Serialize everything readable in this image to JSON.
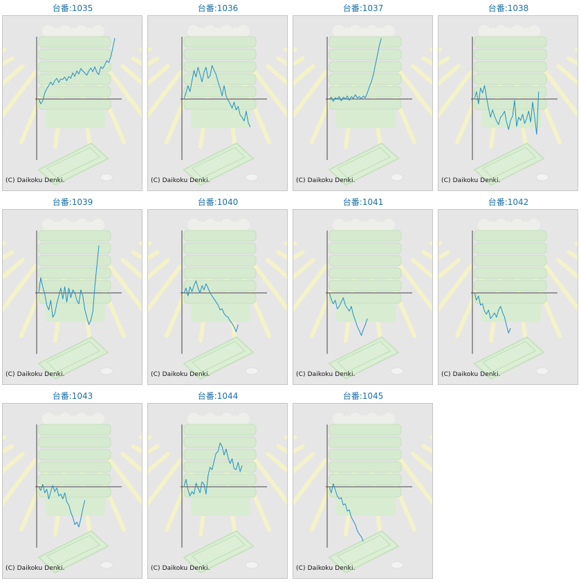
{
  "copyright": "(C) Daikoku Denki.",
  "colors": {
    "line": "#1e8fc4",
    "title": "#1a6fa8",
    "axis": "#444444",
    "panel": "#e6e6e6"
  },
  "chart_data": [
    {
      "type": "line",
      "title": "台番:1035",
      "y": [
        0.0,
        -0.08,
        -0.03,
        0.1,
        0.17,
        0.22,
        0.28,
        0.23,
        0.3,
        0.34,
        0.27,
        0.33,
        0.32,
        0.36,
        0.3,
        0.37,
        0.34,
        0.43,
        0.37,
        0.46,
        0.41,
        0.5,
        0.46,
        0.43,
        0.39,
        0.46,
        0.51,
        0.45,
        0.53,
        0.44,
        0.4,
        0.53,
        0.5,
        0.56,
        0.63,
        0.6,
        0.69,
        0.84,
        1.0
      ]
    },
    {
      "type": "line",
      "title": "台番:1036",
      "y": [
        0.0,
        0.1,
        0.22,
        0.12,
        0.3,
        0.47,
        0.36,
        0.52,
        0.4,
        0.28,
        0.44,
        0.52,
        0.34,
        0.38,
        0.55,
        0.47,
        0.4,
        0.28,
        0.18,
        0.05,
        0.22,
        0.05,
        -0.02,
        -0.08,
        -0.15,
        -0.05,
        -0.18,
        -0.12,
        -0.26,
        -0.3,
        -0.36,
        -0.2,
        -0.38,
        -0.46
      ]
    },
    {
      "type": "line",
      "title": "台番:1037",
      "y": [
        0.0,
        0.03,
        -0.04,
        0.02,
        0.0,
        0.04,
        -0.03,
        0.03,
        0.0,
        0.05,
        -0.02,
        0.04,
        0.01,
        0.07,
        0.02,
        0.04,
        0.0,
        0.05,
        0.02,
        0.1,
        0.2,
        0.28,
        0.4,
        0.56,
        0.72,
        0.88,
        1.0
      ]
    },
    {
      "type": "line",
      "title": "台番:1038",
      "y": [
        0.0,
        0.12,
        -0.08,
        0.18,
        0.1,
        0.22,
        0.03,
        -0.15,
        -0.3,
        -0.18,
        -0.28,
        -0.36,
        -0.42,
        -0.3,
        -0.26,
        -0.2,
        -0.38,
        -0.5,
        -0.35,
        -0.28,
        -0.02,
        -0.45,
        -0.3,
        -0.35,
        -0.25,
        -0.4,
        -0.32,
        -0.2,
        -0.38,
        -0.05,
        -0.3,
        -0.58,
        0.12
      ]
    },
    {
      "type": "line",
      "title": "台番:1039",
      "y": [
        0.0,
        0.25,
        0.1,
        -0.02,
        -0.2,
        -0.28,
        -0.12,
        -0.4,
        -0.34,
        -0.18,
        -0.05,
        0.08,
        -0.1,
        0.1,
        -0.15,
        0.08,
        -0.08,
        0.05,
        0.0,
        -0.12,
        -0.18,
        0.05,
        -0.05,
        -0.28,
        -0.4,
        -0.52,
        -0.45,
        -0.3,
        0.12,
        0.45,
        0.78
      ]
    },
    {
      "type": "line",
      "title": "台番:1040",
      "y": [
        0.0,
        0.08,
        -0.05,
        0.1,
        0.02,
        0.12,
        0.2,
        0.08,
        0.0,
        0.12,
        0.05,
        0.15,
        0.08,
        0.0,
        -0.05,
        -0.1,
        -0.15,
        -0.2,
        -0.28,
        -0.26,
        -0.34,
        -0.38,
        -0.4,
        -0.46,
        -0.5,
        -0.56,
        -0.64,
        -0.52
      ]
    },
    {
      "type": "line",
      "title": "台番:1041",
      "y": [
        0.0,
        -0.1,
        -0.18,
        -0.12,
        -0.26,
        -0.22,
        -0.15,
        -0.08,
        -0.2,
        -0.25,
        -0.3,
        -0.22,
        -0.36,
        -0.45,
        -0.55,
        -0.62,
        -0.7,
        -0.6,
        -0.52,
        -0.42
      ]
    },
    {
      "type": "line",
      "title": "台番:1042",
      "y": [
        0.0,
        -0.12,
        -0.05,
        -0.2,
        -0.18,
        -0.3,
        -0.35,
        -0.28,
        -0.42,
        -0.38,
        -0.33,
        -0.4,
        -0.28,
        -0.22,
        -0.32,
        -0.4,
        -0.54,
        -0.66,
        -0.58
      ]
    },
    {
      "type": "line",
      "title": "台番:1043",
      "y": [
        0.0,
        -0.06,
        0.04,
        -0.1,
        -0.04,
        -0.2,
        -0.08,
        0.02,
        -0.08,
        -0.02,
        -0.15,
        -0.12,
        -0.2,
        -0.1,
        -0.25,
        -0.3,
        -0.42,
        -0.5,
        -0.62,
        -0.58,
        -0.66,
        -0.52,
        -0.36,
        -0.22
      ]
    },
    {
      "type": "line",
      "title": "台番:1044",
      "y": [
        0.0,
        0.12,
        -0.05,
        -0.15,
        -0.08,
        -0.12,
        0.06,
        -0.02,
        -0.1,
        0.08,
        0.04,
        -0.12,
        0.18,
        0.32,
        0.28,
        0.42,
        0.55,
        0.58,
        0.72,
        0.66,
        0.52,
        0.62,
        0.48,
        0.38,
        0.46,
        0.3,
        0.28,
        0.4,
        0.25,
        0.35
      ]
    },
    {
      "type": "line",
      "title": "台番:1045",
      "y": [
        0.0,
        -0.1,
        0.05,
        -0.05,
        -0.15,
        -0.2,
        -0.18,
        -0.3,
        -0.28,
        -0.4,
        -0.38,
        -0.5,
        -0.56,
        -0.62,
        -0.72,
        -0.78,
        -0.82,
        -0.9
      ]
    }
  ]
}
